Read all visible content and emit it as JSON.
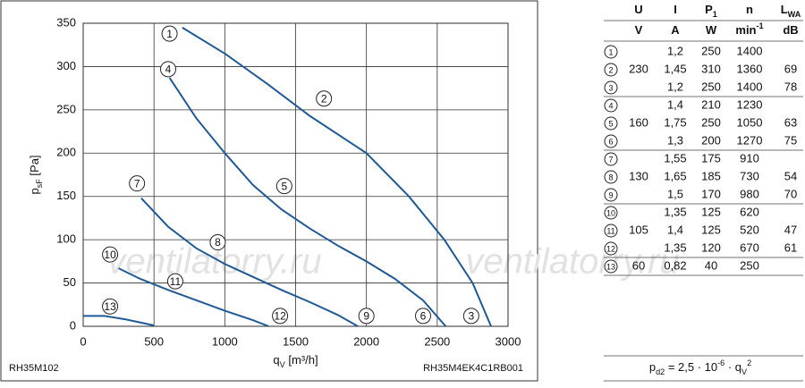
{
  "chart_data": {
    "type": "line",
    "xlabel": {
      "text": "q",
      "sub": "V",
      "rest": " [m³/h]"
    },
    "ylabel": {
      "text": "p",
      "sub": "sF",
      "rest": " [Pa]"
    },
    "xlim": [
      0,
      3000
    ],
    "xticks": [
      0,
      500,
      1000,
      1500,
      2000,
      2500,
      3000
    ],
    "ylim": [
      0,
      350
    ],
    "yticks": [
      0,
      50,
      100,
      150,
      200,
      250,
      300,
      350
    ],
    "grid": true,
    "series": [
      {
        "color": "#1f5a96",
        "x": [
          700,
          1000,
          1300,
          1600,
          2000,
          2300,
          2550,
          2750,
          2880
        ],
        "values": [
          345,
          315,
          280,
          243,
          200,
          150,
          100,
          50,
          0
        ]
      },
      {
        "color": "#1f5a96",
        "x": [
          610,
          800,
          1000,
          1200,
          1400,
          1600,
          1800,
          2000,
          2200,
          2400,
          2560
        ],
        "values": [
          287,
          240,
          200,
          163,
          135,
          113,
          93,
          75,
          55,
          30,
          0
        ]
      },
      {
        "color": "#1f5a96",
        "x": [
          410,
          600,
          800,
          1000,
          1200,
          1400,
          1600,
          1800,
          1940
        ],
        "values": [
          148,
          115,
          90,
          72,
          57,
          42,
          28,
          13,
          0
        ]
      },
      {
        "color": "#1f5a96",
        "x": [
          250,
          400,
          600,
          800,
          1000,
          1200,
          1310
        ],
        "values": [
          67,
          55,
          42,
          30,
          18,
          7,
          0
        ]
      },
      {
        "color": "#1f5a96",
        "x": [
          0,
          150,
          300,
          500
        ],
        "values": [
          12,
          12,
          8,
          1
        ]
      }
    ],
    "annotations": [
      {
        "text": "1",
        "x": 610,
        "y": 338
      },
      {
        "text": "2",
        "x": 1700,
        "y": 263
      },
      {
        "text": "3",
        "x": 2740,
        "y": 12
      },
      {
        "text": "4",
        "x": 600,
        "y": 297
      },
      {
        "text": "5",
        "x": 1420,
        "y": 162
      },
      {
        "text": "6",
        "x": 2400,
        "y": 12
      },
      {
        "text": "7",
        "x": 380,
        "y": 165
      },
      {
        "text": "8",
        "x": 950,
        "y": 97
      },
      {
        "text": "9",
        "x": 2000,
        "y": 12
      },
      {
        "text": "10",
        "x": 190,
        "y": 83
      },
      {
        "text": "11",
        "x": 650,
        "y": 52
      },
      {
        "text": "12",
        "x": 1390,
        "y": 12
      },
      {
        "text": "13",
        "x": 190,
        "y": 23
      }
    ],
    "footer_left": "RH35M102",
    "footer_right": "RH35M4EK4C1RB001",
    "watermark": "ventilatorry.ru"
  },
  "table": {
    "header": [
      {
        "text": "U"
      },
      {
        "text": "I"
      },
      {
        "text": "P",
        "sub": "1"
      },
      {
        "text": "n"
      },
      {
        "text": "L",
        "sub": "WA"
      }
    ],
    "units": [
      {
        "text": "V"
      },
      {
        "text": "A"
      },
      {
        "text": "W"
      },
      {
        "text": "min",
        "sup": "-1"
      },
      {
        "text": "dB"
      }
    ],
    "rows": [
      [
        "1",
        null,
        "1,2",
        "250",
        "1400",
        null
      ],
      [
        "2",
        "230",
        "1,45",
        "310",
        "1360",
        "69"
      ],
      [
        "3",
        null,
        "1,2",
        "250",
        "1400",
        "78"
      ],
      [
        "4",
        null,
        "1,4",
        "210",
        "1230",
        null
      ],
      [
        "5",
        "160",
        "1,75",
        "250",
        "1050",
        "63"
      ],
      [
        "6",
        null,
        "1,3",
        "200",
        "1270",
        "75"
      ],
      [
        "7",
        null,
        "1,55",
        "175",
        "910",
        null
      ],
      [
        "8",
        "130",
        "1,65",
        "185",
        "730",
        "54"
      ],
      [
        "9",
        null,
        "1,5",
        "170",
        "980",
        "70"
      ],
      [
        "10",
        null,
        "1,35",
        "125",
        "620",
        null
      ],
      [
        "11",
        "105",
        "1,4",
        "125",
        "520",
        "47"
      ],
      [
        "12",
        null,
        "1,35",
        "120",
        "670",
        "61"
      ],
      [
        "13",
        "60",
        "0,82",
        "40",
        "250",
        null
      ]
    ],
    "formula": [
      {
        "text": "p"
      },
      {
        "sub": "d2"
      },
      {
        "text": " = 2,5 · 10"
      },
      {
        "sup": "-6"
      },
      {
        "text": " · q"
      },
      {
        "sub": "V"
      },
      {
        "sup": "2"
      }
    ]
  }
}
